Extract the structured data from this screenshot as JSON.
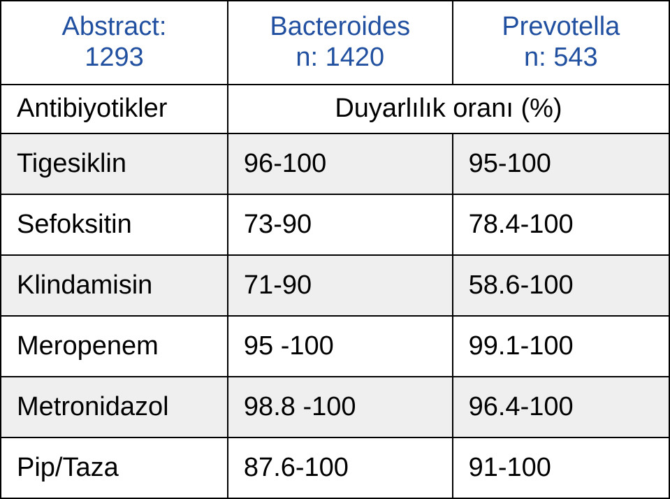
{
  "header": {
    "col1_line1": "Abstract:",
    "col1_line2": "1293",
    "col2_line1": "Bacteroides",
    "col2_line2": "n: 1420",
    "col3_line1": "Prevotella",
    "col3_line2": "n: 543"
  },
  "subheader": {
    "col1": "Antibiyotikler",
    "merged": "Duyarlılık oranı (%)"
  },
  "rows": [
    {
      "name": "Tigesiklin",
      "c2": "96-100",
      "c3": "95-100"
    },
    {
      "name": "Sefoksitin",
      "c2": "73-90",
      "c3": "78.4-100"
    },
    {
      "name": "Klindamisin",
      "c2": "71-90",
      "c3": "58.6-100"
    },
    {
      "name": "Meropenem",
      "c2": "95 -100",
      "c3": "99.1-100"
    },
    {
      "name": "Metronidazol",
      "c2": "98.8 -100",
      "c3": "96.4-100"
    },
    {
      "name": "Pip/Taza",
      "c2": "87.6-100",
      "c3": "91-100"
    }
  ],
  "colors": {
    "header_text": "#2150a0",
    "body_text": "#000000",
    "alt_row_bg": "#f0efef",
    "border": "#000000",
    "background": "#ffffff"
  }
}
